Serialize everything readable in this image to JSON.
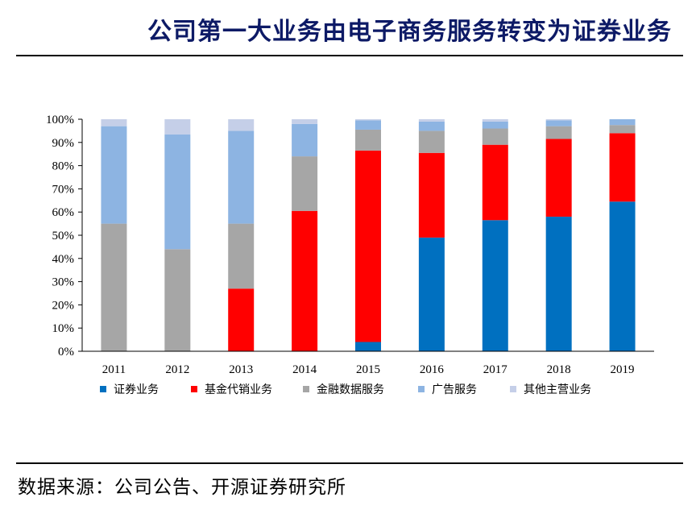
{
  "header": {
    "title": "公司第一大业务由电子商务服务转变为证券业务"
  },
  "footer": {
    "source": "数据来源：公司公告、开源证券研究所"
  },
  "chart_data": {
    "type": "bar",
    "stacked": true,
    "categories": [
      "2011",
      "2012",
      "2013",
      "2014",
      "2015",
      "2016",
      "2017",
      "2018",
      "2019"
    ],
    "ylim": [
      0,
      100
    ],
    "yticks": [
      "0%",
      "10%",
      "20%",
      "30%",
      "40%",
      "50%",
      "60%",
      "70%",
      "80%",
      "90%",
      "100%"
    ],
    "legend_position": "bottom",
    "series": [
      {
        "name": "证券业务",
        "color": "#0070c0",
        "values": [
          0,
          0,
          0,
          0,
          4,
          49,
          56.5,
          58,
          64.5
        ]
      },
      {
        "name": "基金代销业务",
        "color": "#ff0000",
        "values": [
          0,
          0,
          27,
          60.5,
          82.5,
          36.5,
          32.5,
          33.5,
          29.5
        ]
      },
      {
        "name": "金融数据服务",
        "color": "#a6a6a6",
        "values": [
          55,
          44,
          28,
          23.5,
          9,
          9.5,
          7,
          5.5,
          3.5
        ]
      },
      {
        "name": "广告服务",
        "color": "#8db4e2",
        "values": [
          42,
          49.5,
          40,
          14,
          4,
          4,
          3,
          2.5,
          2.5
        ]
      },
      {
        "name": "其他主营业务",
        "color": "#c5cfe8",
        "values": [
          3,
          6.5,
          5,
          2,
          0.5,
          1,
          1,
          0.5,
          0
        ]
      }
    ]
  }
}
